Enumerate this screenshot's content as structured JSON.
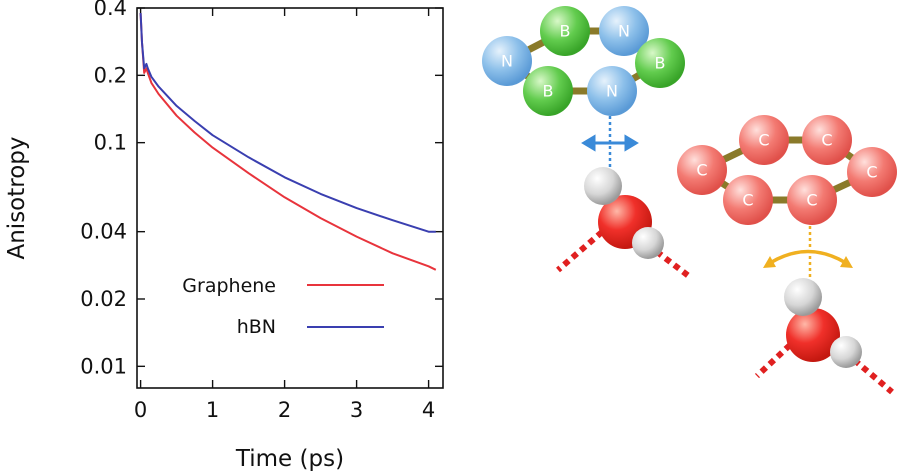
{
  "chart_data": {
    "type": "line",
    "ylabel": "Anisotropy",
    "xlabel": "Time (ps)",
    "yscale": "log",
    "xlim": [
      -0.05,
      4.2
    ],
    "ylim": [
      0.008,
      0.4
    ],
    "xticks": [
      0,
      1,
      2,
      3,
      4
    ],
    "yticks": [
      0.01,
      0.02,
      0.04,
      0.1,
      0.2,
      0.4
    ],
    "ytick_labels": [
      "0.01",
      "0.02",
      "0.04",
      "0.1",
      "0.2",
      "0.4"
    ],
    "legend_position": "lower-center",
    "grid": false,
    "series": [
      {
        "name": "Graphene",
        "color": "#e8343c",
        "x": [
          0,
          0.02,
          0.05,
          0.08,
          0.1,
          0.15,
          0.25,
          0.5,
          0.75,
          1.0,
          1.5,
          2.0,
          2.5,
          3.0,
          3.5,
          4.0,
          4.1
        ],
        "y": [
          0.38,
          0.28,
          0.205,
          0.215,
          0.205,
          0.185,
          0.165,
          0.132,
          0.111,
          0.095,
          0.073,
          0.057,
          0.046,
          0.038,
          0.032,
          0.028,
          0.027
        ]
      },
      {
        "name": "hBN",
        "color": "#3a3fb0",
        "x": [
          0,
          0.02,
          0.05,
          0.08,
          0.1,
          0.15,
          0.25,
          0.5,
          0.75,
          1.0,
          1.5,
          2.0,
          2.5,
          3.0,
          3.5,
          4.0,
          4.1
        ],
        "y": [
          0.38,
          0.28,
          0.215,
          0.225,
          0.215,
          0.197,
          0.178,
          0.146,
          0.125,
          0.108,
          0.086,
          0.07,
          0.059,
          0.051,
          0.045,
          0.04,
          0.04
        ]
      }
    ]
  },
  "illustration": {
    "hbn_atoms": [
      "N",
      "B",
      "N",
      "B",
      "N",
      "B"
    ],
    "graphene_atoms": [
      "C",
      "C",
      "C",
      "C",
      "C",
      "C"
    ],
    "colors": {
      "nitrogen": "#7ab6e6",
      "boron": "#5ac84a",
      "carbon": "#f0706a",
      "bond": "#8a7a2a",
      "oxygen": "#e8281e",
      "hydrogen": "#d8d8d8",
      "hbond": "#e02020",
      "hbn_arrow": "#3a8ad8",
      "graphene_arrow": "#f0b020"
    }
  }
}
